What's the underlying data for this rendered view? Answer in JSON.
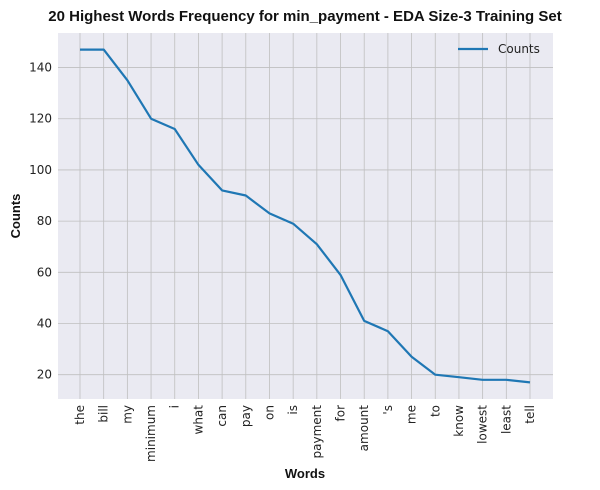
{
  "chart_data": {
    "type": "line",
    "title": "20 Highest Words Frequency for min_payment - EDA Size-3 Training Set",
    "xlabel": "Words",
    "ylabel": "Counts",
    "categories": [
      "the",
      "bill",
      "my",
      "minimum",
      "i",
      "what",
      "can",
      "pay",
      "on",
      "is",
      "payment",
      "for",
      "amount",
      "'s",
      "me",
      "to",
      "know",
      "lowest",
      "least",
      "tell"
    ],
    "series": [
      {
        "name": "Counts",
        "color": "#1f77b4",
        "values": [
          147,
          147,
          135,
          120,
          116,
          102,
          92,
          90,
          83,
          79,
          71,
          59,
          41,
          37,
          27,
          20,
          19,
          18,
          18,
          17
        ]
      }
    ],
    "ylim": [
      10.5,
      153.5
    ],
    "yticks": [
      20,
      40,
      60,
      80,
      100,
      120,
      140
    ],
    "grid": true,
    "legend": "top-right",
    "background_color": "#eaeaf2",
    "grid_color": "#bfbfbf"
  }
}
